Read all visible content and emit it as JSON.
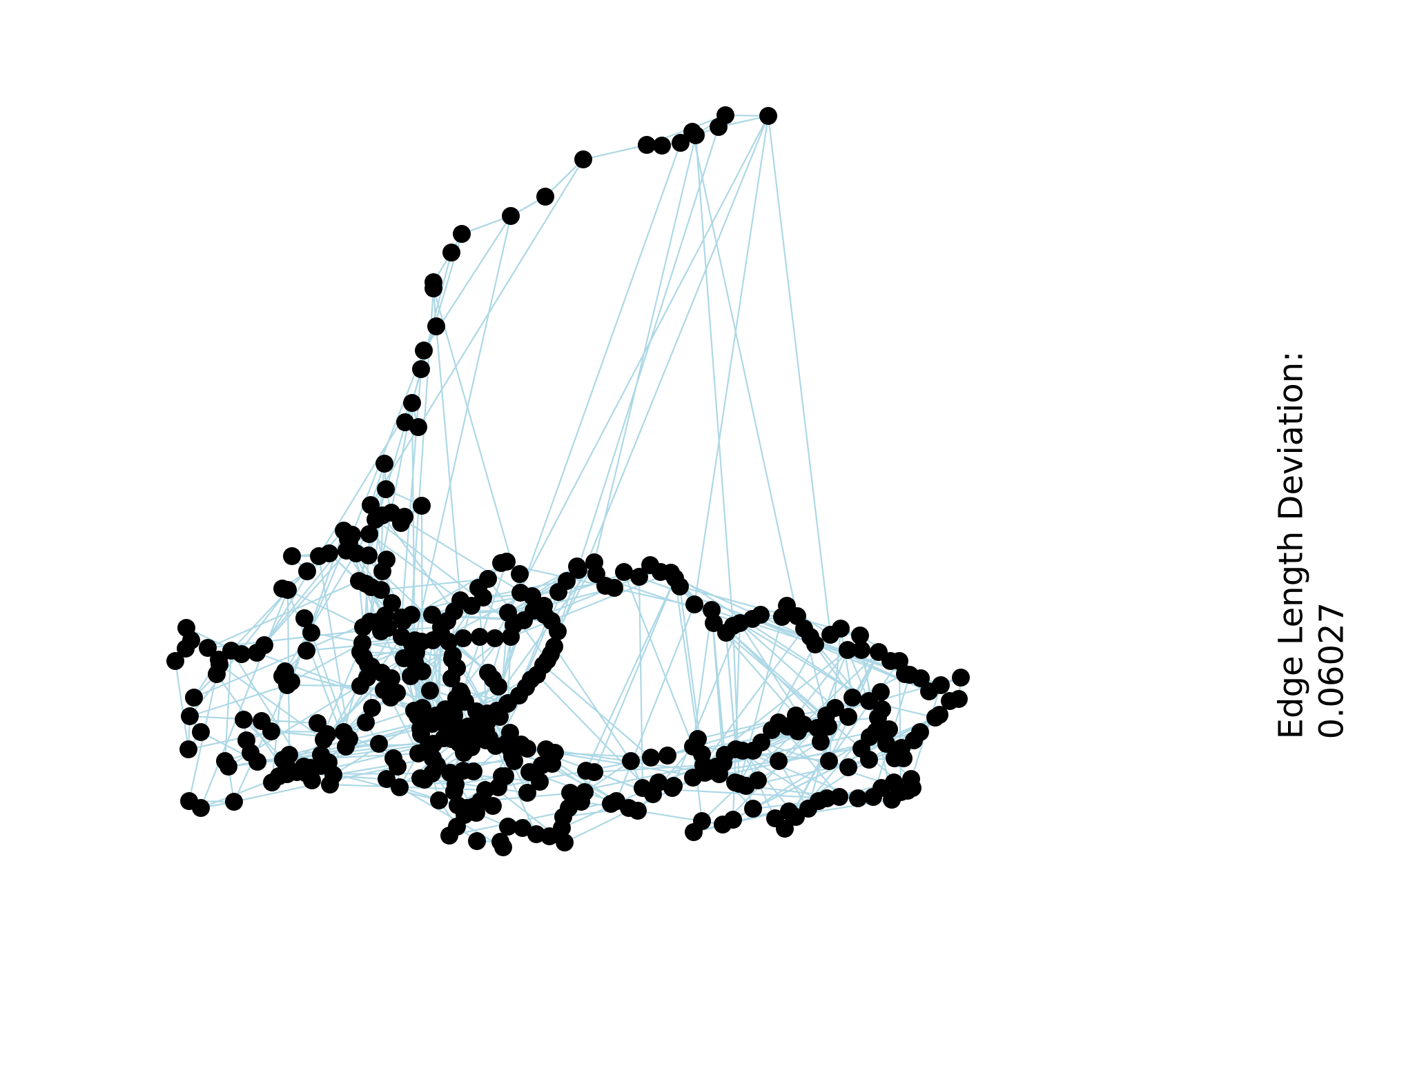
{
  "metric": {
    "label": "Edge Length Deviation:",
    "value": "0.06027"
  },
  "colors": {
    "edge": "#add8e6",
    "node": "#000000",
    "background": "#ffffff"
  }
}
